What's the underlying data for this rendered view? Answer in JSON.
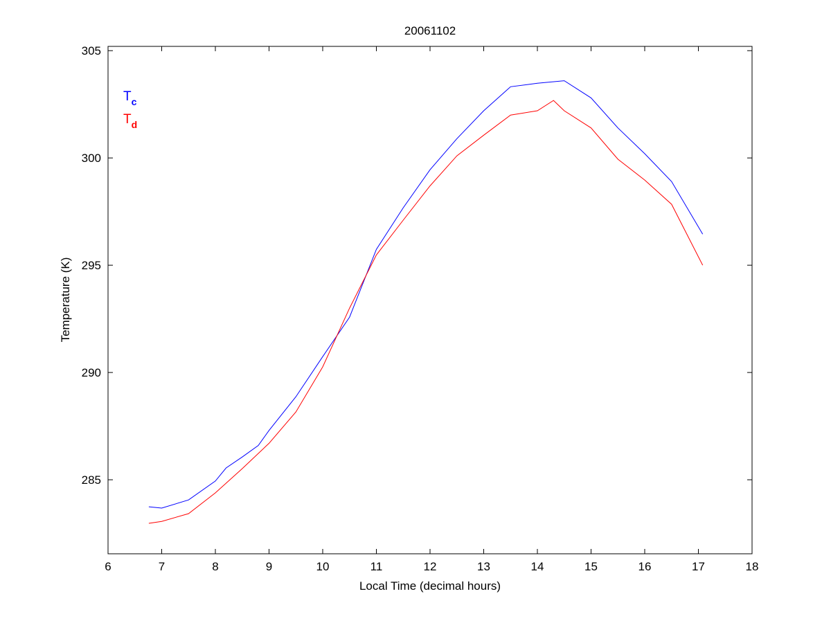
{
  "chart_data": {
    "type": "line",
    "title": "20061102",
    "xlabel": "Local Time (decimal hours)",
    "ylabel": "Temperature (K)",
    "xlim": [
      6,
      18
    ],
    "ylim": [
      281.55,
      305.2
    ],
    "xticks": [
      6,
      7,
      8,
      9,
      10,
      11,
      12,
      13,
      14,
      15,
      16,
      17,
      18
    ],
    "yticks": [
      285,
      290,
      295,
      300,
      305
    ],
    "grid": false,
    "legend_position": "top-left",
    "series": [
      {
        "name": "T",
        "subscript": "c",
        "color": "#0000ff",
        "x": [
          6.76,
          7.0,
          7.5,
          8.0,
          8.2,
          8.5,
          8.8,
          9.0,
          9.5,
          10.0,
          10.5,
          11.0,
          11.5,
          12.0,
          12.5,
          13.0,
          13.5,
          14.0,
          14.5,
          15.0,
          15.5,
          16.0,
          16.5,
          17.08
        ],
        "y": [
          283.74,
          283.68,
          284.06,
          284.94,
          285.55,
          286.06,
          286.6,
          287.3,
          288.87,
          290.74,
          292.58,
          295.74,
          297.68,
          299.45,
          300.9,
          302.2,
          303.32,
          303.48,
          303.6,
          302.8,
          301.4,
          300.2,
          298.9,
          296.45
        ]
      },
      {
        "name": "T",
        "subscript": "d",
        "color": "#ff0000",
        "x": [
          6.76,
          7.0,
          7.5,
          8.0,
          8.5,
          9.0,
          9.5,
          10.0,
          10.5,
          11.0,
          11.5,
          12.0,
          12.5,
          13.0,
          13.5,
          14.0,
          14.3,
          14.5,
          15.0,
          15.5,
          16.0,
          16.5,
          17.08
        ],
        "y": [
          282.97,
          283.06,
          283.42,
          284.39,
          285.52,
          286.7,
          288.16,
          290.26,
          293.0,
          295.48,
          297.1,
          298.7,
          300.1,
          301.06,
          302.0,
          302.2,
          302.68,
          302.2,
          301.4,
          299.94,
          298.97,
          297.84,
          295.0
        ]
      }
    ]
  }
}
